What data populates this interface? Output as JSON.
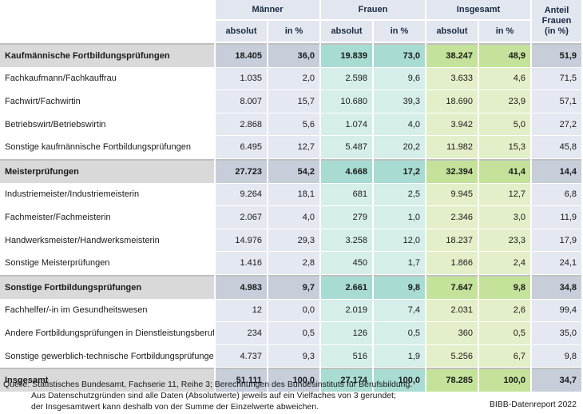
{
  "header": {
    "groups": [
      "Männer",
      "Frauen",
      "Insgesamt"
    ],
    "share": [
      "Anteil",
      "Frauen",
      "(in %)"
    ],
    "sub": [
      "absolut",
      "in %",
      "absolut",
      "in %",
      "absolut",
      "in %"
    ]
  },
  "rows": [
    {
      "label": "Kaufmännische Fortbildungsprüfungen",
      "cat": true,
      "v": [
        "18.405",
        "36,0",
        "19.839",
        "73,0",
        "38.247",
        "48,9",
        "51,9"
      ]
    },
    {
      "label": "Fachkaufmann/Fachkauffrau",
      "cat": false,
      "v": [
        "1.035",
        "2,0",
        "2.598",
        "9,6",
        "3.633",
        "4,6",
        "71,5"
      ]
    },
    {
      "label": "Fachwirt/Fachwirtin",
      "cat": false,
      "v": [
        "8.007",
        "15,7",
        "10.680",
        "39,3",
        "18.690",
        "23,9",
        "57,1"
      ]
    },
    {
      "label": "Betriebswirt/Betriebswirtin",
      "cat": false,
      "v": [
        "2.868",
        "5,6",
        "1.074",
        "4,0",
        "3.942",
        "5,0",
        "27,2"
      ]
    },
    {
      "label": "Sonstige kaufmännische Fortbildungsprüfungen",
      "cat": false,
      "v": [
        "6.495",
        "12,7",
        "5.487",
        "20,2",
        "11.982",
        "15,3",
        "45,8"
      ]
    },
    {
      "label": "Meisterprüfungen",
      "cat": true,
      "v": [
        "27.723",
        "54,2",
        "4.668",
        "17,2",
        "32.394",
        "41,4",
        "14,4"
      ]
    },
    {
      "label": "Industriemeister/Industriemeisterin",
      "cat": false,
      "v": [
        "9.264",
        "18,1",
        "681",
        "2,5",
        "9.945",
        "12,7",
        "6,8"
      ]
    },
    {
      "label": "Fachmeister/Fachmeisterin",
      "cat": false,
      "v": [
        "2.067",
        "4,0",
        "279",
        "1,0",
        "2.346",
        "3,0",
        "11,9"
      ]
    },
    {
      "label": "Handwerksmeister/Handwerksmeisterin",
      "cat": false,
      "v": [
        "14.976",
        "29,3",
        "3.258",
        "12,0",
        "18.237",
        "23,3",
        "17,9"
      ]
    },
    {
      "label": "Sonstige Meisterprüfungen",
      "cat": false,
      "v": [
        "1.416",
        "2,8",
        "450",
        "1,7",
        "1.866",
        "2,4",
        "24,1"
      ]
    },
    {
      "label": "Sonstige Fortbildungsprüfungen",
      "cat": true,
      "v": [
        "4.983",
        "9,7",
        "2.661",
        "9,8",
        "7.647",
        "9,8",
        "34,8"
      ]
    },
    {
      "label": "Fachhelfer/-in im Gesundheitswesen",
      "cat": false,
      "v": [
        "12",
        "0,0",
        "2.019",
        "7,4",
        "2.031",
        "2,6",
        "99,4"
      ]
    },
    {
      "label": "Andere Fortbildungsprüfungen in Dienstleistungsberufen",
      "cat": false,
      "v": [
        "234",
        "0,5",
        "126",
        "0,5",
        "360",
        "0,5",
        "35,0"
      ]
    },
    {
      "label": "Sonstige gewerblich-technische Fortbildungsprüfungen",
      "cat": false,
      "v": [
        "4.737",
        "9,3",
        "516",
        "1,9",
        "5.256",
        "6,7",
        "9,8"
      ]
    },
    {
      "label": "Insgesamt",
      "cat": true,
      "v": [
        "51.111",
        "100,0",
        "27.174",
        "100,0",
        "78.285",
        "100,0",
        "34,7"
      ]
    }
  ],
  "note": [
    "Quelle: Statistisches Bundesamt, Fachserie 11, Reihe 3; Berechnungen des Bundesinstituts für Berufsbildung.",
    "Aus Datenschutzgründen sind alle Daten (Absolutwerte) jeweils auf ein Vielfaches von 3 gerundet;",
    "der Insgesamtwert kann deshalb von der Summe der Einzelwerte abweichen."
  ],
  "credit": "BIBB-Datenreport 2022"
}
